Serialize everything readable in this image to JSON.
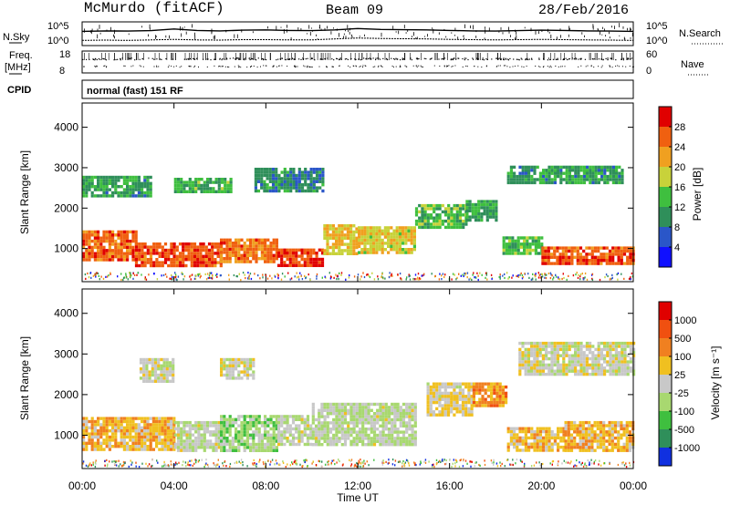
{
  "header": {
    "station": "McMurdo (fitACF)",
    "beam": "Beam 09",
    "date": "28/Feb/2016"
  },
  "chart_data": [
    {
      "type": "line",
      "panel": "noise",
      "left_label": "N.Sky",
      "right_label": "N.Search",
      "left_ticks": [
        "10^5",
        "10^0"
      ],
      "right_ticks": [
        "10^5",
        "10^0"
      ],
      "xlim": [
        0,
        24
      ],
      "series": [
        {
          "values": [
            60,
            62,
            61,
            63,
            70,
            64,
            62,
            65,
            66,
            64,
            63,
            66,
            72,
            68,
            67,
            66,
            64,
            62,
            61,
            63,
            65,
            64,
            62,
            61,
            60
          ]
        },
        {
          "values": [
            22,
            23,
            22,
            24,
            26,
            24,
            23,
            25,
            25,
            24,
            24,
            28,
            32,
            30,
            29,
            28,
            26,
            25,
            24,
            25,
            26,
            25,
            24,
            23,
            22
          ]
        }
      ]
    },
    {
      "type": "scatter",
      "panel": "frequency",
      "left_label": "Freq.",
      "left_unit": "[MHz]",
      "right_label": "Nave",
      "left_ticks": [
        "18",
        "8"
      ],
      "right_ticks": [
        "60",
        "0"
      ],
      "cpid_label": "CPID",
      "cpid_text": "normal (fast) 151 RF",
      "freq_mhz": 10.4,
      "nave": 18
    },
    {
      "type": "heatmap",
      "panel": "power",
      "ylabel": "Slant Range [km]",
      "xlabel": "Time UT",
      "ylim": [
        180,
        4600
      ],
      "xlim": [
        0,
        24
      ],
      "yticks": [
        "1000",
        "2000",
        "3000",
        "4000"
      ],
      "xticks": [
        "00:00",
        "04:00",
        "08:00",
        "12:00",
        "16:00",
        "20:00",
        "00:00"
      ],
      "colorbar": {
        "label": "Power [dB]",
        "ticks": [
          "4",
          "8",
          "12",
          "16",
          "20",
          "24",
          "28"
        ],
        "colors": [
          "#1010ff",
          "#2a56c8",
          "#2f8f5a",
          "#3fbf3f",
          "#c8d23a",
          "#f0a020",
          "#f06010",
          "#e00000"
        ]
      },
      "regions": [
        {
          "t": [
            0,
            2.3
          ],
          "r": [
            700,
            1450
          ],
          "v": 26
        },
        {
          "t": [
            2.3,
            6
          ],
          "r": [
            600,
            1150
          ],
          "v": 27
        },
        {
          "t": [
            6,
            8.5
          ],
          "r": [
            650,
            1250
          ],
          "v": 25
        },
        {
          "t": [
            8.5,
            10.5
          ],
          "r": [
            600,
            1000
          ],
          "v": 28
        },
        {
          "t": [
            10.5,
            12
          ],
          "r": [
            900,
            1600
          ],
          "v": 20
        },
        {
          "t": [
            12,
            14.5
          ],
          "r": [
            900,
            1550
          ],
          "v": 19
        },
        {
          "t": [
            14.5,
            16.7
          ],
          "r": [
            1500,
            2100
          ],
          "v": 14
        },
        {
          "t": [
            16.7,
            18
          ],
          "r": [
            1700,
            2200
          ],
          "v": 12
        },
        {
          "t": [
            18.3,
            20
          ],
          "r": [
            900,
            1300
          ],
          "v": 14
        },
        {
          "t": [
            20,
            24
          ],
          "r": [
            600,
            1050
          ],
          "v": 26
        },
        {
          "t": [
            0,
            3
          ],
          "r": [
            2300,
            2800
          ],
          "v": 11
        },
        {
          "t": [
            4,
            6.5
          ],
          "r": [
            2400,
            2750
          ],
          "v": 13
        },
        {
          "t": [
            7.5,
            10.5
          ],
          "r": [
            2400,
            3000
          ],
          "v": 9
        },
        {
          "t": [
            18.5,
            23.5
          ],
          "r": [
            2600,
            3050
          ],
          "v": 11
        }
      ]
    },
    {
      "type": "heatmap",
      "panel": "velocity",
      "ylabel": "Slant Range [km]",
      "xlabel": "Time UT",
      "ylim": [
        180,
        4600
      ],
      "xlim": [
        0,
        24
      ],
      "yticks": [
        "1000",
        "2000",
        "3000",
        "4000"
      ],
      "xticks": [
        "00:00",
        "04:00",
        "08:00",
        "12:00",
        "16:00",
        "20:00",
        "00:00"
      ],
      "colorbar": {
        "label": "Velocity [m s⁻¹]",
        "ticks": [
          "1000",
          "500",
          "100",
          "25",
          "-25",
          "-100",
          "-500",
          "-1000"
        ],
        "colors": [
          "#1030e0",
          "#2f8f5a",
          "#3fbf3f",
          "#a8d870",
          "#c8c8c8",
          "#f0c020",
          "#f08020",
          "#f05010",
          "#e00000"
        ]
      },
      "regions": [
        {
          "t": [
            0,
            4
          ],
          "r": [
            650,
            1450
          ],
          "v": -300
        },
        {
          "t": [
            4,
            6
          ],
          "r": [
            600,
            1350
          ],
          "v": 90
        },
        {
          "t": [
            6,
            8.5
          ],
          "r": [
            650,
            1500
          ],
          "v": 300
        },
        {
          "t": [
            8.5,
            10
          ],
          "r": [
            800,
            1500
          ],
          "v": 40
        },
        {
          "t": [
            10,
            14.5
          ],
          "r": [
            800,
            1800
          ],
          "v": 120
        },
        {
          "t": [
            15,
            17
          ],
          "r": [
            1500,
            2300
          ],
          "v": -120
        },
        {
          "t": [
            17,
            18.5
          ],
          "r": [
            1700,
            2300
          ],
          "v": -500
        },
        {
          "t": [
            18.5,
            21
          ],
          "r": [
            600,
            1200
          ],
          "v": -300
        },
        {
          "t": [
            21,
            24
          ],
          "r": [
            600,
            1350
          ],
          "v": -300
        },
        {
          "t": [
            2.5,
            4
          ],
          "r": [
            2300,
            2900
          ],
          "v": 0
        },
        {
          "t": [
            6,
            7.5
          ],
          "r": [
            2400,
            2900
          ],
          "v": 0
        },
        {
          "t": [
            19,
            24
          ],
          "r": [
            2500,
            3300
          ],
          "v": 0
        }
      ]
    }
  ]
}
